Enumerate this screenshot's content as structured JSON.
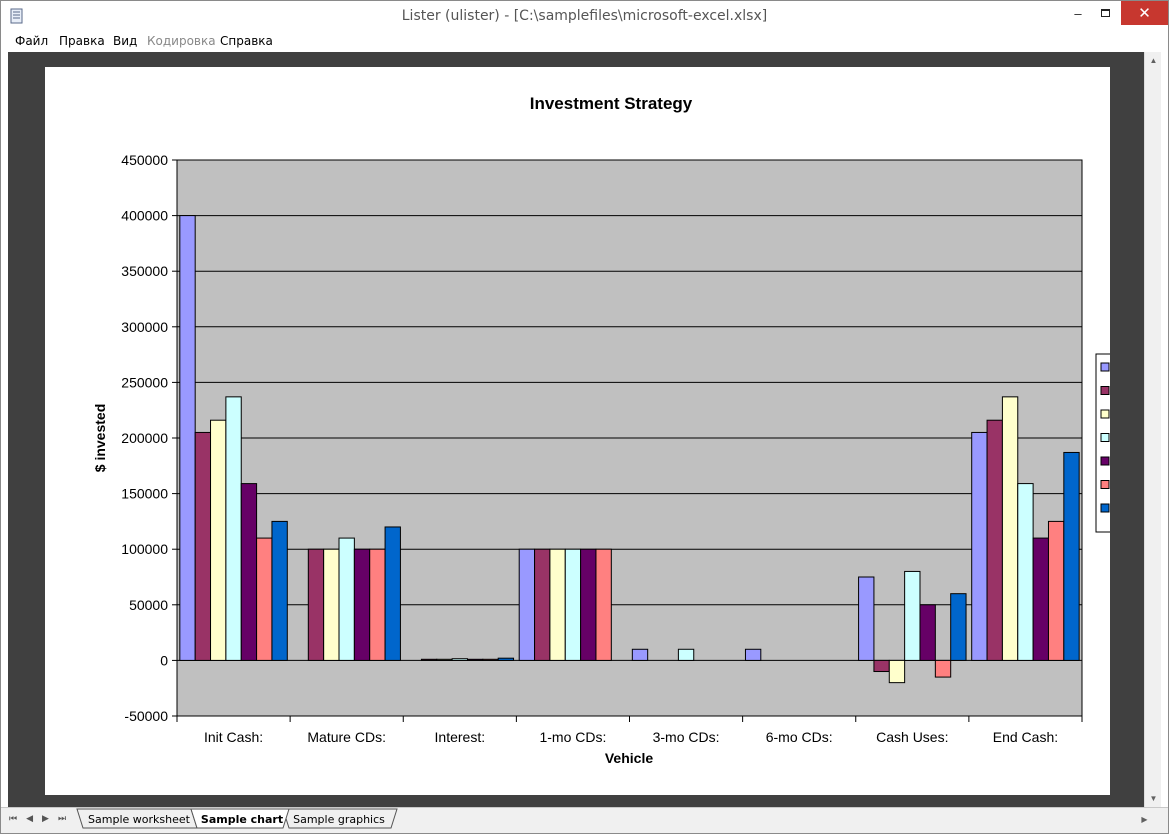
{
  "window": {
    "title": "Lister (ulister) - [C:\\samplefiles\\microsoft-excel.xlsx]",
    "min_icon": "minimize-icon",
    "max_icon": "maximize-icon",
    "close_icon": "close-icon"
  },
  "menu": {
    "items": [
      {
        "label": "Файл",
        "enabled": true
      },
      {
        "label": "Правка",
        "enabled": true
      },
      {
        "label": "Вид",
        "enabled": true
      },
      {
        "label": "Кодировка",
        "enabled": false
      },
      {
        "label": "Справка",
        "enabled": true
      }
    ]
  },
  "sheet_tabs": [
    {
      "label": "Sample worksheet",
      "active": false
    },
    {
      "label": "Sample chart",
      "active": true
    },
    {
      "label": "Sample graphics",
      "active": false
    }
  ],
  "chart_data": {
    "type": "bar",
    "title": "Investment Strategy",
    "xlabel": "Vehicle",
    "ylabel": "$ invested",
    "ylim": [
      -50000,
      450000
    ],
    "yticks": [
      "450000",
      "400000",
      "350000",
      "300000",
      "250000",
      "200000",
      "150000",
      "100000",
      "50000",
      "0",
      "-50000"
    ],
    "grid": true,
    "legend_position": "right",
    "categories": [
      "Init Cash:",
      "Mature CDs:",
      "Interest:",
      "1-mo CDs:",
      "3-mo CDs:",
      "6-mo CDs:",
      "Cash Uses:",
      "End Cash:"
    ],
    "series": [
      {
        "color": "#9999ff",
        "values": [
          400000,
          0,
          0,
          100000,
          10000,
          10000,
          75000,
          205000
        ]
      },
      {
        "color": "#993366",
        "values": [
          205000,
          100000,
          1000,
          100000,
          0,
          0,
          -10000,
          216000
        ]
      },
      {
        "color": "#ffffcc",
        "values": [
          216000,
          100000,
          1000,
          100000,
          0,
          0,
          -20000,
          237000
        ]
      },
      {
        "color": "#ccffff",
        "values": [
          237000,
          110000,
          1500,
          100000,
          10000,
          0,
          80000,
          159000
        ]
      },
      {
        "color": "#660066",
        "values": [
          159000,
          100000,
          1000,
          100000,
          0,
          0,
          50000,
          110000
        ]
      },
      {
        "color": "#ff8080",
        "values": [
          110000,
          100000,
          1000,
          100000,
          0,
          0,
          -15000,
          125000
        ]
      },
      {
        "color": "#0066cc",
        "values": [
          125000,
          120000,
          2000,
          0,
          0,
          0,
          60000,
          187000
        ]
      }
    ]
  }
}
